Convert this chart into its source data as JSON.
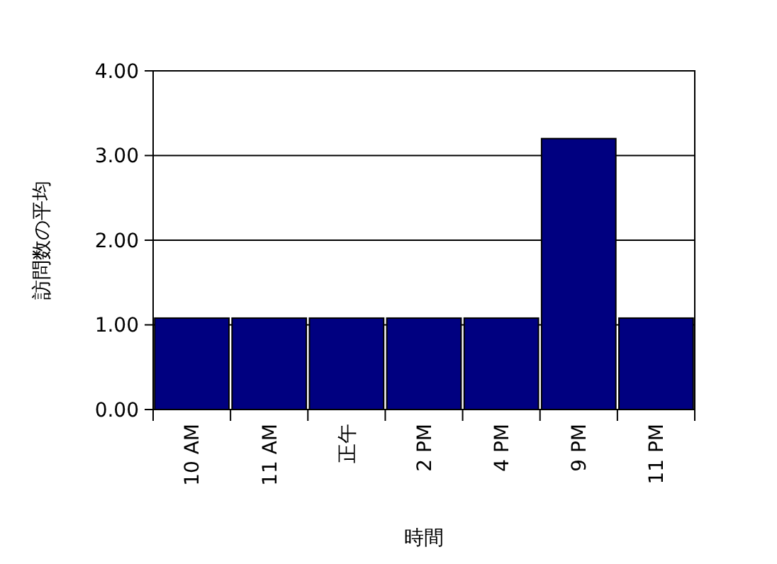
{
  "chart_data": {
    "type": "bar",
    "xlabel": "時間",
    "ylabel": "訪問数の平均",
    "categories": [
      "10 AM",
      "11 AM",
      "正午",
      "2 PM",
      "4 PM",
      "9 PM",
      "11 PM"
    ],
    "values": [
      1.08,
      1.08,
      1.08,
      1.08,
      1.08,
      3.2,
      1.08
    ],
    "color": "#000080",
    "ylim": [
      0,
      4
    ],
    "yticks": [
      {
        "value": 0,
        "label": "0.00"
      },
      {
        "value": 1,
        "label": "1.00"
      },
      {
        "value": 2,
        "label": "2.00"
      },
      {
        "value": 3,
        "label": "3.00"
      },
      {
        "value": 4,
        "label": "4.00"
      }
    ],
    "grid": "y"
  }
}
